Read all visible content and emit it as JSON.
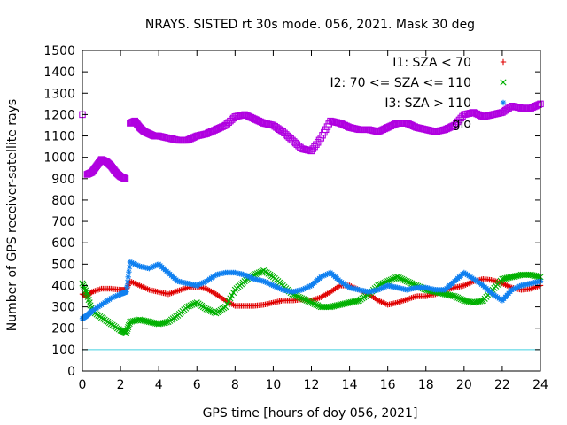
{
  "chart_data": {
    "type": "scatter",
    "title": "NRAYS. SISTED rt 30s mode. 056, 2021. Mask 30 deg",
    "xlabel": "GPS time [hours of doy 056, 2021]",
    "ylabel": "Number of GPS receiver-satellite rays",
    "xlim": [
      0,
      24
    ],
    "ylim": [
      0,
      1500
    ],
    "xticks": [
      "0",
      "2",
      "4",
      "6",
      "8",
      "10",
      "12",
      "14",
      "16",
      "18",
      "20",
      "22",
      "24"
    ],
    "yticks": [
      "0",
      "100",
      "200",
      "300",
      "400",
      "500",
      "600",
      "700",
      "800",
      "900",
      "1000",
      "1100",
      "1200",
      "1300",
      "1400",
      "1500"
    ],
    "reference_line": {
      "y": 100,
      "color": "#40d0e0"
    },
    "legend_position": "top-right",
    "series": [
      {
        "name": "I1: SZA < 70",
        "marker": "+",
        "color": "#e00000",
        "x": [
          0,
          0.25,
          0.5,
          1,
          1.5,
          2,
          2.3,
          2.5,
          3,
          3.5,
          4,
          4.5,
          5,
          5.5,
          6,
          6.5,
          7,
          7.5,
          8,
          8.5,
          9,
          9.5,
          10,
          10.5,
          11,
          11.5,
          12,
          12.5,
          13,
          13.5,
          14,
          14.5,
          15,
          15.5,
          16,
          16.5,
          17,
          17.5,
          18,
          18.5,
          19,
          19.5,
          20,
          20.5,
          21,
          21.5,
          22,
          22.5,
          23,
          23.5,
          24
        ],
        "y": [
          360,
          350,
          370,
          385,
          385,
          380,
          380,
          420,
          400,
          380,
          370,
          360,
          375,
          390,
          395,
          385,
          360,
          330,
          305,
          305,
          305,
          310,
          320,
          330,
          330,
          335,
          330,
          345,
          370,
          400,
          400,
          380,
          360,
          330,
          310,
          320,
          335,
          350,
          350,
          360,
          380,
          390,
          400,
          420,
          430,
          425,
          410,
          390,
          380,
          385,
          400
        ]
      },
      {
        "name": "I2: 70 <= SZA <= 110",
        "marker": "x",
        "color": "#00b000",
        "x": [
          0,
          0.25,
          0.5,
          1,
          1.5,
          2,
          2.3,
          2.5,
          3,
          3.5,
          4,
          4.5,
          5,
          5.5,
          6,
          6.5,
          7,
          7.5,
          8,
          8.5,
          9,
          9.5,
          10,
          10.5,
          11,
          11.5,
          12,
          12.5,
          13,
          13.5,
          14,
          14.5,
          15,
          15.5,
          16,
          16.5,
          17,
          17.5,
          18,
          18.5,
          19,
          19.5,
          20,
          20.5,
          21,
          21.5,
          22,
          22.5,
          23,
          23.5,
          24
        ],
        "y": [
          410,
          360,
          280,
          250,
          220,
          190,
          180,
          230,
          240,
          230,
          220,
          230,
          260,
          300,
          320,
          290,
          270,
          300,
          380,
          420,
          450,
          470,
          440,
          400,
          360,
          340,
          320,
          300,
          300,
          310,
          320,
          330,
          360,
          400,
          420,
          440,
          420,
          400,
          380,
          370,
          360,
          350,
          330,
          320,
          330,
          380,
          430,
          440,
          450,
          450,
          440
        ]
      },
      {
        "name": "I3: SZA > 110",
        "marker": "*",
        "color": "#1080f0",
        "x": [
          0,
          0.25,
          0.5,
          1,
          1.5,
          2,
          2.3,
          2.5,
          3,
          3.5,
          4,
          4.5,
          5,
          5.5,
          6,
          6.5,
          7,
          7.5,
          8,
          8.5,
          9,
          9.5,
          10,
          10.5,
          11,
          11.5,
          12,
          12.5,
          13,
          13.5,
          14,
          14.5,
          15,
          15.5,
          16,
          16.5,
          17,
          17.5,
          18,
          18.5,
          19,
          19.5,
          20,
          20.5,
          21,
          21.5,
          22,
          22.5,
          23,
          23.5,
          24
        ],
        "y": [
          245,
          260,
          280,
          310,
          340,
          360,
          370,
          510,
          490,
          480,
          500,
          460,
          420,
          410,
          400,
          420,
          450,
          460,
          460,
          450,
          430,
          420,
          400,
          380,
          370,
          380,
          400,
          440,
          460,
          420,
          390,
          380,
          370,
          380,
          400,
          390,
          380,
          390,
          390,
          380,
          380,
          420,
          460,
          430,
          400,
          360,
          330,
          380,
          400,
          410,
          420
        ]
      },
      {
        "name": "glo",
        "marker": "square",
        "color": "#b000e0",
        "x": [
          0,
          0.25,
          0.5,
          0.75,
          1,
          1.25,
          1.5,
          1.75,
          2,
          2.25,
          2.5,
          2.75,
          3,
          3.25,
          3.5,
          3.75,
          4,
          4.5,
          5,
          5.5,
          6,
          6.5,
          7,
          7.5,
          8,
          8.5,
          9,
          9.5,
          10,
          10.5,
          11,
          11.5,
          12,
          12.5,
          13,
          13.5,
          14,
          14.5,
          15,
          15.5,
          16,
          16.5,
          17,
          17.5,
          18,
          18.5,
          19,
          19.5,
          20,
          20.5,
          21,
          21.5,
          22,
          22.5,
          23,
          23.5,
          24
        ],
        "y": [
          1200,
          920,
          930,
          960,
          990,
          980,
          960,
          930,
          910,
          900,
          1160,
          1170,
          1140,
          1120,
          1110,
          1100,
          1100,
          1090,
          1080,
          1080,
          1100,
          1110,
          1130,
          1150,
          1190,
          1200,
          1180,
          1160,
          1150,
          1120,
          1080,
          1040,
          1030,
          1090,
          1170,
          1160,
          1140,
          1130,
          1130,
          1120,
          1140,
          1160,
          1160,
          1140,
          1130,
          1120,
          1130,
          1150,
          1200,
          1210,
          1190,
          1200,
          1210,
          1240,
          1230,
          1230,
          1250
        ]
      }
    ]
  }
}
